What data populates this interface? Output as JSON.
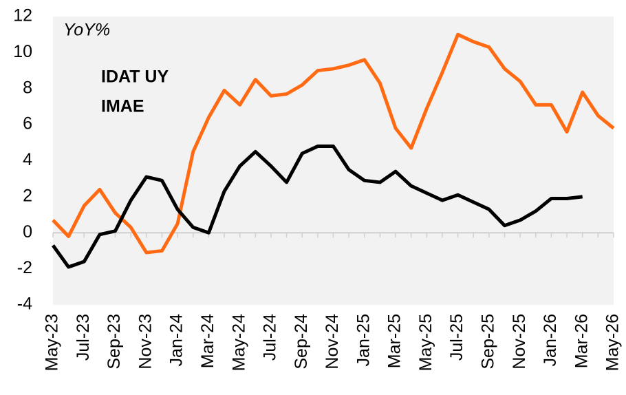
{
  "chart_data": {
    "type": "line",
    "annotations": [
      "YoY%"
    ],
    "categories": [
      "May-23",
      null,
      "Jul-23",
      null,
      "Sep-23",
      null,
      "Nov-23",
      null,
      "Jan-24",
      null,
      "Mar-24",
      null,
      "May-24",
      null,
      "Jul-24",
      null,
      "Sep-24",
      null,
      "Nov-24",
      null,
      "Jan-25",
      null,
      "Mar-25",
      null,
      "May-25",
      null,
      "Jul-25",
      null,
      "Sep-25",
      null,
      "Nov-25",
      null,
      "Jan-26",
      null,
      "Mar-26",
      null,
      "May-26"
    ],
    "series": [
      {
        "name": "IDAT UY",
        "color": "#ff6a13",
        "values": [
          0.7,
          -0.2,
          1.5,
          2.4,
          1.1,
          0.3,
          -1.1,
          -1.0,
          0.5,
          4.5,
          6.4,
          7.9,
          7.1,
          8.5,
          7.6,
          7.7,
          8.2,
          9.0,
          9.1,
          9.3,
          9.6,
          8.3,
          5.8,
          4.7,
          6.9,
          8.9,
          11.0,
          10.6,
          10.3,
          9.1,
          8.4,
          7.1,
          7.1,
          5.6,
          7.8,
          6.5,
          5.8
        ]
      },
      {
        "name": "IMAE",
        "color": "#000000",
        "values": [
          -0.7,
          -1.9,
          -1.6,
          -0.1,
          0.1,
          1.8,
          3.1,
          2.9,
          1.3,
          0.3,
          0.0,
          2.3,
          3.7,
          4.5,
          3.7,
          2.8,
          4.4,
          4.8,
          4.8,
          3.5,
          2.9,
          2.8,
          3.4,
          2.6,
          2.2,
          1.8,
          2.1,
          1.7,
          1.3,
          0.4,
          0.7,
          1.2,
          1.9,
          1.9,
          2.0,
          null,
          null
        ]
      }
    ],
    "ylim": [
      -4,
      12
    ],
    "yticks": [
      -4,
      -2,
      0,
      2,
      4,
      6,
      8,
      10,
      12
    ],
    "grid": false
  }
}
